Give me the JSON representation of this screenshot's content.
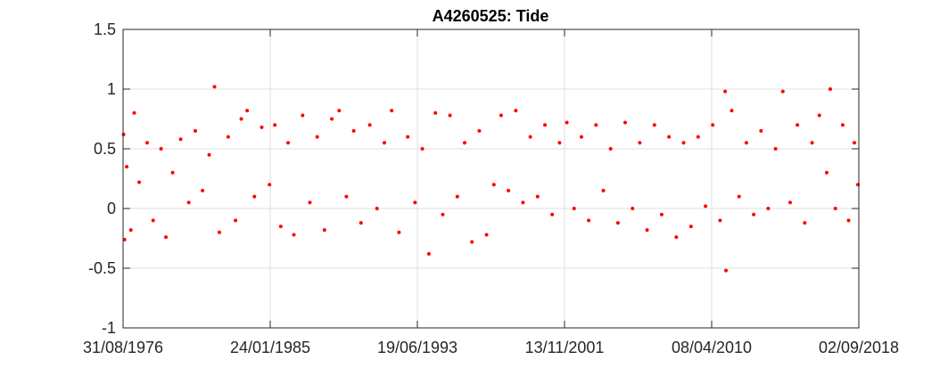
{
  "colors": {
    "series": "#ff0000",
    "grid": "#dfdfdf",
    "axis": "#262626",
    "background": "#ffffff"
  },
  "chart_data": {
    "type": "scatter",
    "title": "A4260525: Tide",
    "xlabel": "",
    "ylabel": "",
    "grid": true,
    "legend": "none",
    "xlim": [
      "1976-08-31",
      "2018-09-02"
    ],
    "ylim": [
      -1,
      1.5
    ],
    "x_tick_labels": [
      "31/08/1976",
      "24/01/1985",
      "19/06/1993",
      "13/11/2001",
      "08/04/2010",
      "02/09/2018"
    ],
    "y_tick_labels": [
      "-1",
      "-0.5",
      "0",
      "0.5",
      "1",
      "1.5"
    ],
    "y_ticks": [
      -1,
      -0.5,
      0,
      0.5,
      1,
      1.5
    ],
    "marker": "filled-dot",
    "series": [
      {
        "points": [
          [
            "1976-09-10",
            0.62
          ],
          [
            "1976-10-01",
            -0.26
          ],
          [
            "1976-11-15",
            0.35
          ],
          [
            "1977-02-10",
            -0.18
          ],
          [
            "1977-04-20",
            0.8
          ],
          [
            "1977-08-01",
            0.22
          ],
          [
            "1978-01-15",
            0.55
          ],
          [
            "1978-05-20",
            -0.1
          ],
          [
            "1978-11-01",
            0.5
          ],
          [
            "1979-02-10",
            -0.24
          ],
          [
            "1979-07-01",
            0.3
          ],
          [
            "1979-12-15",
            0.58
          ],
          [
            "1980-06-01",
            0.05
          ],
          [
            "1980-10-15",
            0.65
          ],
          [
            "1981-03-15",
            0.15
          ],
          [
            "1981-08-01",
            0.45
          ],
          [
            "1981-11-20",
            1.02
          ],
          [
            "1982-03-01",
            -0.2
          ],
          [
            "1982-09-01",
            0.6
          ],
          [
            "1983-02-01",
            -0.1
          ],
          [
            "1983-06-01",
            0.75
          ],
          [
            "1983-10-01",
            0.82
          ],
          [
            "1984-03-01",
            0.1
          ],
          [
            "1984-08-01",
            0.68
          ],
          [
            "1985-01-10",
            0.2
          ],
          [
            "1985-05-01",
            0.7
          ],
          [
            "1985-09-01",
            -0.15
          ],
          [
            "1986-02-01",
            0.55
          ],
          [
            "1986-06-01",
            -0.22
          ],
          [
            "1986-12-01",
            0.78
          ],
          [
            "1987-05-01",
            0.05
          ],
          [
            "1987-10-01",
            0.6
          ],
          [
            "1988-03-01",
            -0.18
          ],
          [
            "1988-08-01",
            0.75
          ],
          [
            "1989-01-01",
            0.82
          ],
          [
            "1989-06-01",
            0.1
          ],
          [
            "1989-11-01",
            0.65
          ],
          [
            "1990-04-01",
            -0.12
          ],
          [
            "1990-10-01",
            0.7
          ],
          [
            "1991-03-01",
            0.0
          ],
          [
            "1991-08-01",
            0.55
          ],
          [
            "1992-01-01",
            0.82
          ],
          [
            "1992-06-01",
            -0.2
          ],
          [
            "1992-12-01",
            0.6
          ],
          [
            "1993-05-01",
            0.05
          ],
          [
            "1993-10-01",
            0.5
          ],
          [
            "1994-02-15",
            -0.38
          ],
          [
            "1994-07-01",
            0.8
          ],
          [
            "1994-12-01",
            -0.05
          ],
          [
            "1995-05-01",
            0.78
          ],
          [
            "1995-10-01",
            0.1
          ],
          [
            "1996-03-01",
            0.55
          ],
          [
            "1996-08-01",
            -0.28
          ],
          [
            "1997-01-01",
            0.65
          ],
          [
            "1997-06-01",
            -0.22
          ],
          [
            "1997-11-01",
            0.2
          ],
          [
            "1998-04-01",
            0.78
          ],
          [
            "1998-09-01",
            0.15
          ],
          [
            "1999-02-01",
            0.82
          ],
          [
            "1999-07-01",
            0.05
          ],
          [
            "1999-12-01",
            0.6
          ],
          [
            "2000-05-01",
            0.1
          ],
          [
            "2000-10-01",
            0.7
          ],
          [
            "2001-03-01",
            -0.05
          ],
          [
            "2001-08-01",
            0.55
          ],
          [
            "2002-01-01",
            0.72
          ],
          [
            "2002-06-01",
            0.0
          ],
          [
            "2002-11-01",
            0.6
          ],
          [
            "2003-04-01",
            -0.1
          ],
          [
            "2003-09-01",
            0.7
          ],
          [
            "2004-02-01",
            0.15
          ],
          [
            "2004-07-01",
            0.5
          ],
          [
            "2004-12-01",
            -0.12
          ],
          [
            "2005-05-01",
            0.72
          ],
          [
            "2005-10-01",
            0.0
          ],
          [
            "2006-03-01",
            0.55
          ],
          [
            "2006-08-01",
            -0.18
          ],
          [
            "2007-01-01",
            0.7
          ],
          [
            "2007-06-01",
            -0.05
          ],
          [
            "2007-11-01",
            0.6
          ],
          [
            "2008-04-01",
            -0.24
          ],
          [
            "2008-09-01",
            0.55
          ],
          [
            "2009-02-01",
            -0.15
          ],
          [
            "2009-07-01",
            0.6
          ],
          [
            "2009-12-01",
            0.02
          ],
          [
            "2010-05-01",
            0.7
          ],
          [
            "2010-10-01",
            -0.1
          ],
          [
            "2011-01-15",
            0.98
          ],
          [
            "2011-02-01",
            -0.52
          ],
          [
            "2011-06-01",
            0.82
          ],
          [
            "2011-11-01",
            0.1
          ],
          [
            "2012-04-01",
            0.55
          ],
          [
            "2012-09-01",
            -0.05
          ],
          [
            "2013-02-01",
            0.65
          ],
          [
            "2013-07-01",
            0.0
          ],
          [
            "2013-12-01",
            0.5
          ],
          [
            "2014-05-01",
            0.98
          ],
          [
            "2014-10-01",
            0.05
          ],
          [
            "2015-03-01",
            0.7
          ],
          [
            "2015-08-01",
            -0.12
          ],
          [
            "2016-01-01",
            0.55
          ],
          [
            "2016-06-01",
            0.78
          ],
          [
            "2016-11-01",
            0.3
          ],
          [
            "2017-01-15",
            1.0
          ],
          [
            "2017-05-01",
            0.0
          ],
          [
            "2017-10-01",
            0.7
          ],
          [
            "2018-02-01",
            -0.1
          ],
          [
            "2018-06-01",
            0.55
          ],
          [
            "2018-08-15",
            0.2
          ]
        ]
      }
    ]
  }
}
